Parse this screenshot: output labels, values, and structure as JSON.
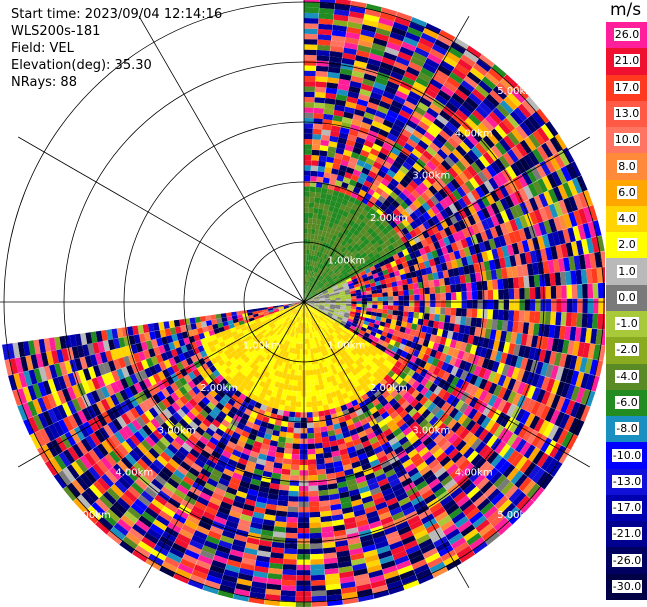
{
  "info": {
    "start_time": "Start time: 2023/09/04 12:14:16",
    "site": "WLS200s-181",
    "field": "Field: VEL",
    "elevation": "Elevation(deg): 35.30",
    "nrays": "NRays: 88"
  },
  "colorbar": {
    "unit": "m/s",
    "levels": [
      {
        "label": "26.0",
        "color": "#ff1f9a"
      },
      {
        "label": "21.0",
        "color": "#f01030"
      },
      {
        "label": "17.0",
        "color": "#ff3a1e"
      },
      {
        "label": "13.0",
        "color": "#ff5a45"
      },
      {
        "label": "10.0",
        "color": "#ff7562"
      },
      {
        "label": "8.0",
        "color": "#ff8a3a"
      },
      {
        "label": "6.0",
        "color": "#ffa600"
      },
      {
        "label": "4.0",
        "color": "#ffd400"
      },
      {
        "label": "2.0",
        "color": "#ffff00"
      },
      {
        "label": "1.0",
        "color": "#b9b9b9"
      },
      {
        "label": "0.0",
        "color": "#7a7a7a"
      },
      {
        "label": "-1.0",
        "color": "#a7c93a"
      },
      {
        "label": "-2.0",
        "color": "#8aab20"
      },
      {
        "label": "-4.0",
        "color": "#5a8a25"
      },
      {
        "label": "-6.0",
        "color": "#228b22"
      },
      {
        "label": "-8.0",
        "color": "#1a90c0"
      },
      {
        "label": "-10.0",
        "color": "#0000ff"
      },
      {
        "label": "-13.0",
        "color": "#1010d8"
      },
      {
        "label": "-17.0",
        "color": "#0000b0"
      },
      {
        "label": "-21.0",
        "color": "#000090"
      },
      {
        "label": "-26.0",
        "color": "#000060"
      },
      {
        "label": "-30.0",
        "color": "#000045"
      }
    ]
  },
  "chart_data": {
    "type": "heatmap",
    "projection": "polar-ppi",
    "field": "VEL",
    "units": "m/s",
    "value_range": [
      -30.0,
      30.0
    ],
    "nrays": 88,
    "range_ring_labels_km": [
      "1.00km",
      "2.00km",
      "3.00km",
      "4.00km",
      "5.00km"
    ],
    "sector_data": {
      "azimuth_start_deg": 0,
      "azimuth_end_deg": 262
    },
    "near_range_pattern": [
      {
        "azimuth_from": 0,
        "azimuth_to": 60,
        "range_to_km": 1.9,
        "typical_value": -4.0
      },
      {
        "azimuth_from": 60,
        "azimuth_to": 120,
        "range_to_km": 0.8,
        "typical_value": 0.5
      },
      {
        "azimuth_from": 120,
        "azimuth_to": 250,
        "range_to_km": 1.8,
        "typical_value": 4.0
      }
    ]
  }
}
